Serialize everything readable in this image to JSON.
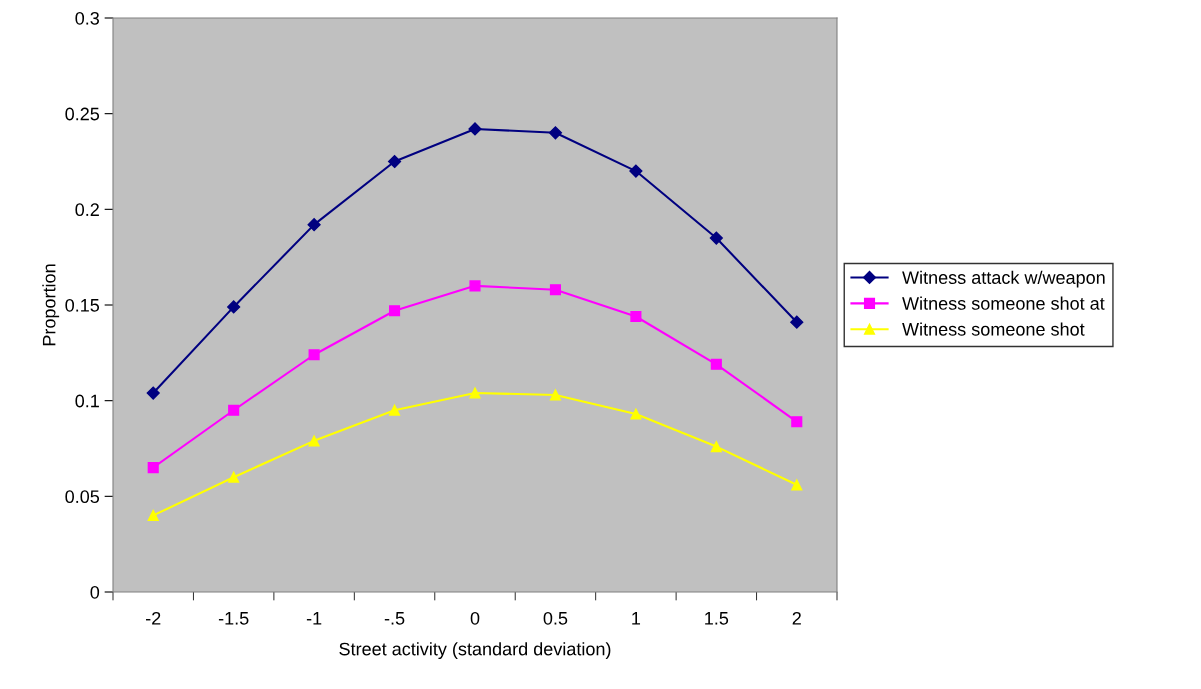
{
  "chart_data": {
    "type": "line",
    "xlabel": "Street activity (standard deviation)",
    "ylabel": "Proportion",
    "categories": [
      "-2",
      "-1.5",
      "-1",
      "-.5",
      "0",
      "0.5",
      "1",
      "1.5",
      "2"
    ],
    "series": [
      {
        "name": "Witness attack w/weapon",
        "color": "#000080",
        "marker": "diamond",
        "values": [
          0.104,
          0.149,
          0.192,
          0.225,
          0.242,
          0.24,
          0.22,
          0.185,
          0.141
        ]
      },
      {
        "name": "Witness someone shot at",
        "color": "#ff00ff",
        "marker": "square",
        "values": [
          0.065,
          0.095,
          0.124,
          0.147,
          0.16,
          0.158,
          0.144,
          0.119,
          0.089
        ]
      },
      {
        "name": "Witness someone shot",
        "color": "#ffff00",
        "marker": "triangle",
        "values": [
          0.04,
          0.06,
          0.079,
          0.095,
          0.104,
          0.103,
          0.093,
          0.076,
          0.056
        ]
      }
    ],
    "ylim": [
      0,
      0.3
    ],
    "yticks": [
      0,
      0.05,
      0.1,
      0.15,
      0.2,
      0.25,
      0.3
    ],
    "grid": false,
    "legend": "right",
    "line_style": "solid"
  }
}
